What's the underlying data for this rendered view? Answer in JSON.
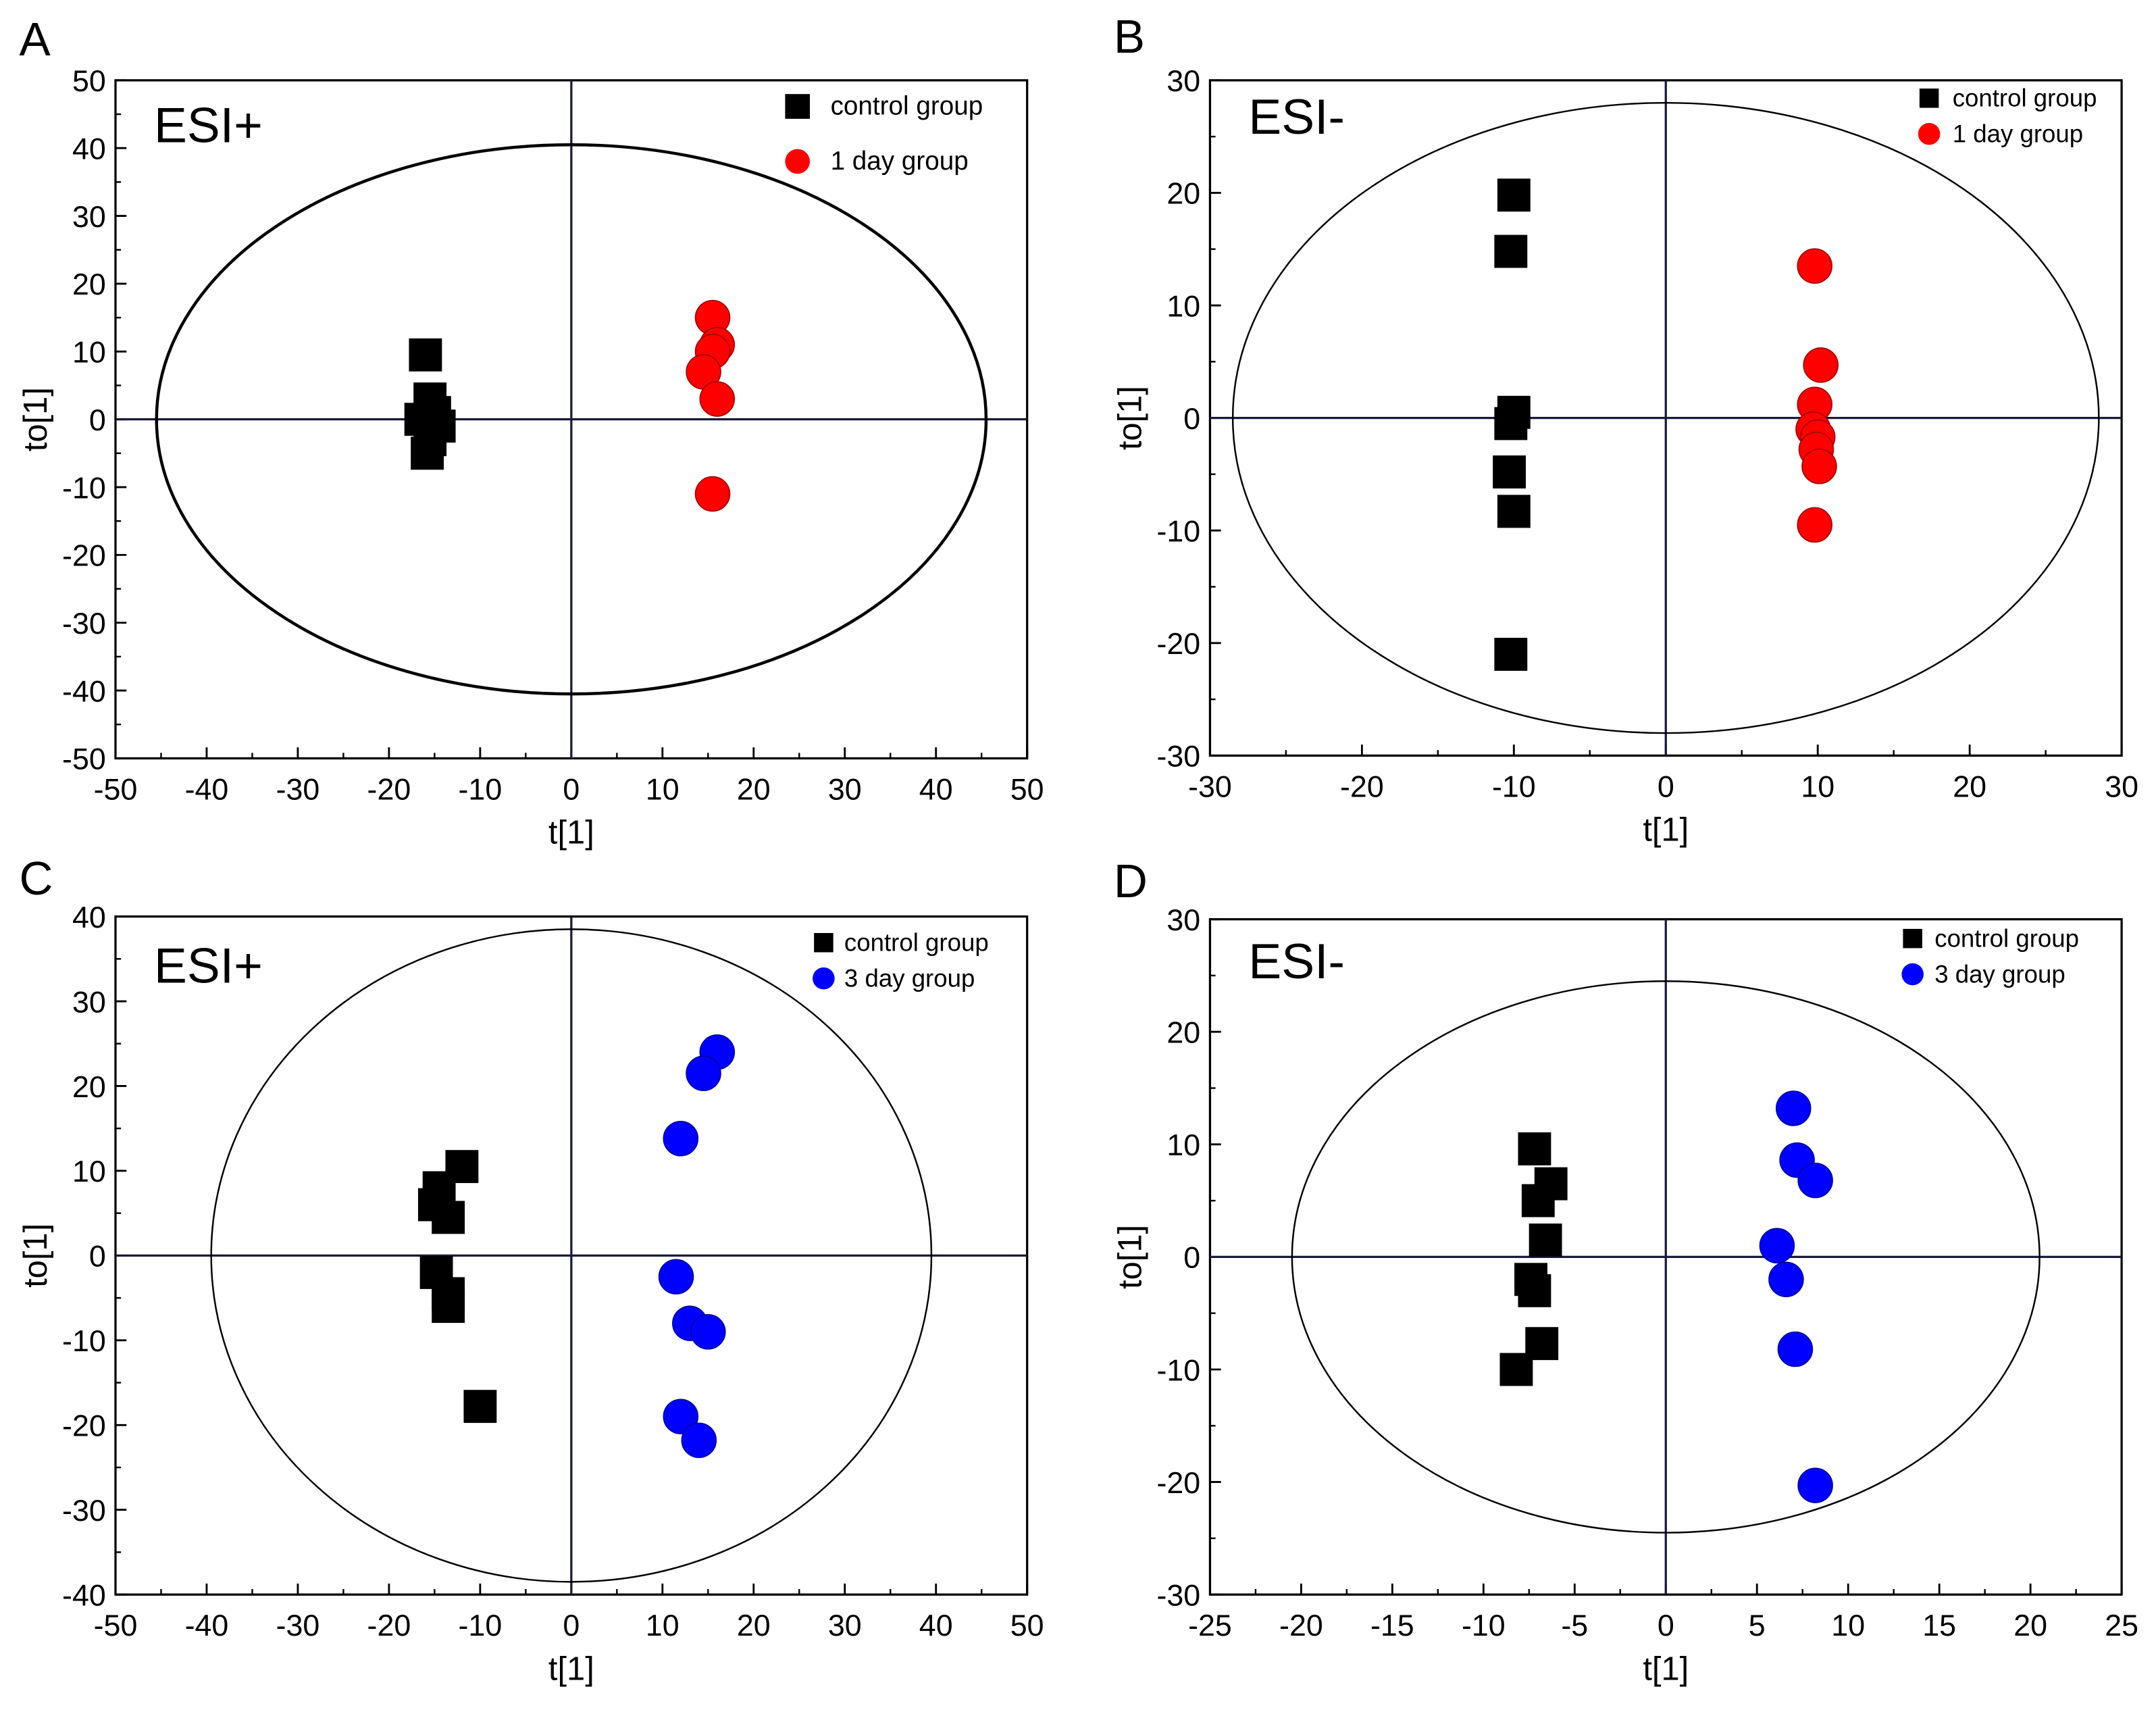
{
  "chart_data": [
    {
      "type": "scatter",
      "panel_label": "A",
      "annotation": "ESI+",
      "xlabel": "t[1]",
      "ylabel": "to[1]",
      "xlim": [
        -50,
        50
      ],
      "ylim": [
        -50,
        50
      ],
      "xticks": [
        -50,
        -40,
        -30,
        -20,
        -10,
        0,
        10,
        20,
        30,
        40,
        50
      ],
      "yticks": [
        -50,
        -40,
        -30,
        -20,
        -10,
        0,
        10,
        20,
        30,
        40,
        50
      ],
      "ellipse": {
        "rx": 45.5,
        "ry": 40.5
      },
      "legend_position": "top-right",
      "series": [
        {
          "name": "control group",
          "marker": "square",
          "color": "#000000",
          "points": [
            [
              -16,
              9.5
            ],
            [
              -15.5,
              3
            ],
            [
              -15,
              1
            ],
            [
              -16.5,
              0
            ],
            [
              -14.5,
              -1
            ],
            [
              -15.5,
              -3
            ],
            [
              -15.8,
              -5
            ]
          ]
        },
        {
          "name": "1 day group",
          "marker": "circle",
          "color": "#ff0000",
          "points": [
            [
              15.5,
              15
            ],
            [
              16,
              11
            ],
            [
              15.5,
              10
            ],
            [
              14.5,
              7
            ],
            [
              16,
              3
            ],
            [
              15.5,
              -11
            ]
          ]
        }
      ]
    },
    {
      "type": "scatter",
      "panel_label": "B",
      "annotation": "ESI-",
      "xlabel": "t[1]",
      "ylabel": "to[1]",
      "xlim": [
        -30,
        30
      ],
      "ylim": [
        -30,
        30
      ],
      "xticks": [
        -30,
        -20,
        -10,
        0,
        10,
        20,
        30
      ],
      "yticks": [
        -30,
        -20,
        -10,
        0,
        10,
        20,
        30
      ],
      "ellipse": {
        "rx": 28.5,
        "ry": 28
      },
      "legend_position": "top-right",
      "series": [
        {
          "name": "control group",
          "marker": "square",
          "color": "#000000",
          "points": [
            [
              -10,
              19.8
            ],
            [
              -10.2,
              14.8
            ],
            [
              -10,
              0.5
            ],
            [
              -10.2,
              -0.5
            ],
            [
              -10.3,
              -4.8
            ],
            [
              -10,
              -8.3
            ],
            [
              -10.2,
              -21
            ]
          ]
        },
        {
          "name": "1 day group",
          "marker": "circle",
          "color": "#ff0000",
          "points": [
            [
              9.8,
              13.5
            ],
            [
              10.2,
              4.7
            ],
            [
              9.8,
              1.2
            ],
            [
              9.7,
              -1
            ],
            [
              10,
              -1.7
            ],
            [
              9.9,
              -2.8
            ],
            [
              10.1,
              -4.3
            ],
            [
              9.8,
              -9.5
            ]
          ]
        }
      ]
    },
    {
      "type": "scatter",
      "panel_label": "C",
      "annotation": "ESI+",
      "xlabel": "t[1]",
      "ylabel": "to[1]",
      "xlim": [
        -50,
        50
      ],
      "ylim": [
        -40,
        40
      ],
      "xticks": [
        -50,
        -40,
        -30,
        -20,
        -10,
        0,
        10,
        20,
        30,
        40,
        50
      ],
      "yticks": [
        -40,
        -30,
        -20,
        -10,
        0,
        10,
        20,
        30,
        40
      ],
      "ellipse": {
        "rx": 39.5,
        "ry": 38.5
      },
      "legend_position": "top-right",
      "series": [
        {
          "name": "control group",
          "marker": "square",
          "color": "#000000",
          "points": [
            [
              -12,
              10.5
            ],
            [
              -14.5,
              8
            ],
            [
              -15,
              6
            ],
            [
              -13.5,
              4.5
            ],
            [
              -14.8,
              -2
            ],
            [
              -13.5,
              -4.5
            ],
            [
              -13.5,
              -6
            ],
            [
              -10,
              -17.8
            ]
          ]
        },
        {
          "name": "3 day group",
          "marker": "circle",
          "color": "#0000ff",
          "points": [
            [
              16,
              24
            ],
            [
              14.5,
              21.5
            ],
            [
              12,
              13.8
            ],
            [
              11.5,
              -2.5
            ],
            [
              13,
              -8
            ],
            [
              15,
              -9
            ],
            [
              12,
              -19
            ],
            [
              14,
              -21.8
            ]
          ]
        }
      ]
    },
    {
      "type": "scatter",
      "panel_label": "D",
      "annotation": "ESI-",
      "xlabel": "t[1]",
      "ylabel": "to[1]",
      "xlim": [
        -25,
        25
      ],
      "ylim": [
        -30,
        30
      ],
      "xticks": [
        -25,
        -20,
        -15,
        -10,
        -5,
        0,
        5,
        10,
        15,
        20,
        25
      ],
      "yticks": [
        -30,
        -20,
        -10,
        0,
        10,
        20,
        30
      ],
      "ellipse": {
        "rx": 20.5,
        "ry": 24.5
      },
      "legend_position": "top-right",
      "series": [
        {
          "name": "control group",
          "marker": "square",
          "color": "#000000",
          "points": [
            [
              -7.2,
              9.6
            ],
            [
              -6.3,
              6.5
            ],
            [
              -7,
              5
            ],
            [
              -6.6,
              1.5
            ],
            [
              -7.4,
              -2
            ],
            [
              -7.2,
              -3
            ],
            [
              -6.8,
              -7.7
            ],
            [
              -8.2,
              -10
            ]
          ]
        },
        {
          "name": "3 day group",
          "marker": "circle",
          "color": "#0000ff",
          "points": [
            [
              7,
              13.2
            ],
            [
              7.2,
              8.6
            ],
            [
              8.2,
              6.8
            ],
            [
              6.1,
              1
            ],
            [
              6.6,
              -2
            ],
            [
              7.1,
              -8.2
            ],
            [
              8.2,
              -20.3
            ]
          ]
        }
      ]
    }
  ]
}
